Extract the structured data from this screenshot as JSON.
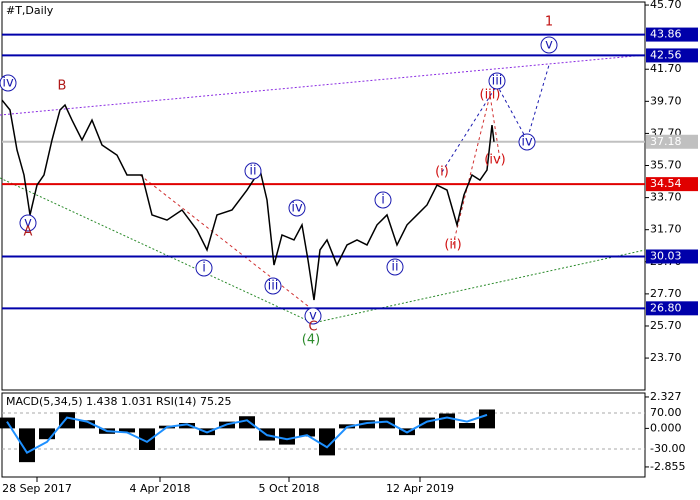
{
  "chart_data": [
    {
      "type": "line",
      "title": "#T,Daily",
      "color": "#000000",
      "x": [
        0,
        8,
        15,
        22,
        28,
        35,
        42,
        50,
        58,
        63,
        70,
        80,
        90,
        100,
        115,
        125,
        140,
        150,
        165,
        180,
        195,
        205,
        215,
        230,
        245,
        258,
        265,
        272,
        280,
        292,
        300,
        306,
        312,
        318,
        325,
        335,
        345,
        355,
        365,
        375,
        385,
        395,
        405,
        415,
        425,
        435,
        445,
        455,
        462,
        470,
        478,
        485,
        490,
        492
      ],
      "values": [
        39.78,
        39.16,
        36.67,
        35.11,
        32.62,
        34.48,
        35.11,
        37.29,
        39.16,
        39.47,
        38.53,
        37.29,
        38.53,
        36.98,
        36.35,
        35.11,
        35.11,
        32.62,
        32.3,
        32.93,
        31.68,
        30.44,
        32.62,
        32.93,
        34.17,
        35.42,
        33.55,
        29.5,
        31.37,
        31.06,
        32.0,
        29.81,
        27.32,
        30.44,
        31.06,
        29.5,
        30.75,
        31.06,
        30.75,
        32.0,
        32.62,
        30.75,
        32.0,
        32.62,
        33.24,
        34.48,
        34.17,
        32.0,
        33.87,
        35.11,
        34.79,
        35.42,
        38.22,
        37.18
      ],
      "xlim": [
        0,
        643
      ],
      "xticks": [
        {
          "value": 35,
          "label": "28 Sep 2017"
        },
        {
          "value": 158,
          "label": "4 Apr 2018"
        },
        {
          "value": 287,
          "label": "5 Oct 2018"
        },
        {
          "value": 418,
          "label": "12 Apr 2019"
        }
      ],
      "ylim": [
        21.71,
        45.89
      ],
      "yticks": [
        {
          "value": 45.7,
          "label": "45.70"
        },
        {
          "value": 41.7,
          "label": "41.70"
        },
        {
          "value": 39.7,
          "label": "39.70"
        },
        {
          "value": 37.7,
          "label": "37.70"
        },
        {
          "value": 35.7,
          "label": "35.70"
        },
        {
          "value": 33.7,
          "label": "33.70"
        },
        {
          "value": 31.7,
          "label": "31.70"
        },
        {
          "value": 29.7,
          "label": "29.70"
        },
        {
          "value": 27.7,
          "label": "27.70"
        },
        {
          "value": 25.7,
          "label": "25.70"
        },
        {
          "value": 23.7,
          "label": "23.70"
        }
      ],
      "hlines": [
        {
          "value": 43.86,
          "label": "43.86",
          "color": "#0000aa"
        },
        {
          "value": 42.56,
          "label": "42.56",
          "color": "#0000aa"
        },
        {
          "value": 37.18,
          "label": "37.18",
          "color": "#c0c0c0"
        },
        {
          "value": 34.54,
          "label": "34.54",
          "color": "#e00000"
        },
        {
          "value": 30.03,
          "label": "30.03",
          "color": "#0000aa"
        },
        {
          "value": 26.8,
          "label": "26.80",
          "color": "#0000aa"
        }
      ],
      "annotations": [
        {
          "text": "iv",
          "color": "#1a1ab0",
          "circle": true
        },
        {
          "text": "B",
          "color": "#b01a1a",
          "circle": false
        },
        {
          "text": "v",
          "color": "#1a1ab0",
          "circle": true
        },
        {
          "text": "A",
          "color": "#b01a1a",
          "circle": false
        },
        {
          "text": "ii",
          "color": "#1a1ab0",
          "circle": true
        },
        {
          "text": "iv",
          "color": "#1a1ab0",
          "circle": true
        },
        {
          "text": "i",
          "color": "#1a1ab0",
          "circle": true
        },
        {
          "text": "iii",
          "color": "#1a1ab0",
          "circle": true
        },
        {
          "text": "v",
          "color": "#1a1ab0",
          "circle": true
        },
        {
          "text": "C",
          "color": "#b01a1a",
          "circle": false
        },
        {
          "text": "(4)",
          "color": "#2a8a2a",
          "circle": false
        },
        {
          "text": "i",
          "color": "#1a1ab0",
          "circle": true
        },
        {
          "text": "ii",
          "color": "#1a1ab0",
          "circle": true
        },
        {
          "text": "(i)",
          "color": "#d01010",
          "circle": false
        },
        {
          "text": "(ii)",
          "color": "#d01010",
          "circle": false
        },
        {
          "text": "(iii)",
          "color": "#d01010",
          "circle": false
        },
        {
          "text": "(iv)",
          "color": "#d01010",
          "circle": false
        },
        {
          "text": "iii",
          "color": "#1a1ab0",
          "circle": true
        },
        {
          "text": "iv",
          "color": "#1a1ab0",
          "circle": true
        },
        {
          "text": "v",
          "color": "#1a1ab0",
          "circle": true
        },
        {
          "text": "1",
          "color": "#c01010",
          "circle": false
        }
      ]
    },
    {
      "type": "macd",
      "title": "MACD(5,34,5) 1.438 1.031 RSI(14) 75.25",
      "x": [
        5,
        25,
        45,
        65,
        85,
        105,
        125,
        145,
        165,
        185,
        205,
        225,
        245,
        265,
        285,
        305,
        325,
        345,
        365,
        385,
        405,
        425,
        445,
        465,
        485
      ],
      "series": [
        {
          "color": "#000000",
          "values": [
            0.8,
            -2.5,
            -0.8,
            1.2,
            0.6,
            -0.4,
            -0.3,
            -1.6,
            0.2,
            0.4,
            -0.5,
            0.5,
            0.9,
            -0.9,
            -1.2,
            -0.6,
            -2.0,
            0.3,
            0.6,
            0.8,
            -0.5,
            0.8,
            1.1,
            0.4,
            1.4
          ]
        },
        {
          "color": "#1e90ff",
          "values": [
            0.5,
            -1.8,
            -1.0,
            0.8,
            0.5,
            -0.2,
            -0.3,
            -1.0,
            0.1,
            0.3,
            -0.3,
            0.3,
            0.6,
            -0.5,
            -0.8,
            -0.5,
            -1.4,
            0.1,
            0.4,
            0.5,
            -0.3,
            0.5,
            0.8,
            0.5,
            1.0
          ]
        }
      ],
      "xlim": [
        0,
        643
      ],
      "ylim": [
        -3.6,
        2.62
      ],
      "yticks": [
        2.327,
        {
          "value": 0,
          "label": "0.000"
        },
        -2.855
      ],
      "y2lim": [
        -107.8,
        125.6
      ],
      "y2ticks": [
        {
          "value": 70,
          "label": "70.00"
        },
        {
          "value": -30,
          "label": "-30.00"
        }
      ]
    }
  ]
}
